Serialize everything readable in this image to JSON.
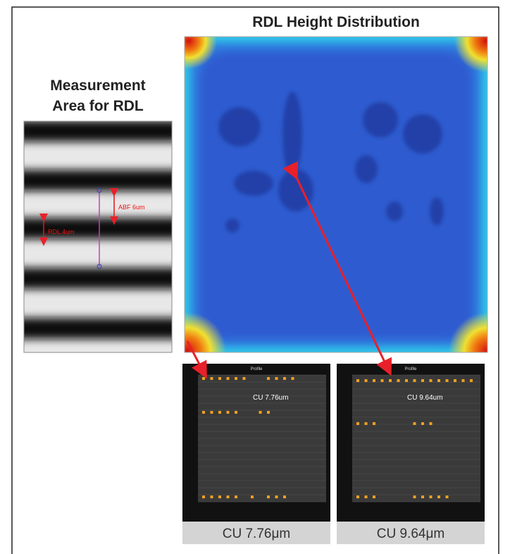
{
  "title": "RDL Height Distribution",
  "measurement": {
    "title_lines": [
      "Measurement",
      "Area for RDL"
    ],
    "annotations": [
      "ABF 6um",
      "RDL 4um"
    ]
  },
  "profiles": [
    {
      "title": "Profile",
      "label": "CU  7.76um",
      "caption": "CU 7.76μm"
    },
    {
      "title": "Profile",
      "label": "CU  9.64um",
      "caption": "CU 9.64μm"
    }
  ]
}
